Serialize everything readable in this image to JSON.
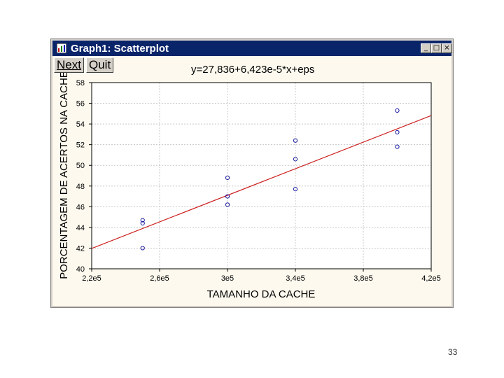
{
  "window": {
    "title": "Graph1: Scatterplot",
    "controls": {
      "minimize": "_",
      "maximize": "□",
      "close": "×"
    }
  },
  "toolbar": {
    "next_label": "Next",
    "quit_label": "Quit"
  },
  "colors": {
    "titlebar": "#0a246a",
    "plot_bg": "#fdf9ee",
    "points": "#1a1aa0",
    "fit_line": "#cc2020"
  },
  "chart_data": {
    "type": "scatter",
    "title": "y=27,836+6,423e-5*x+eps",
    "xlabel": "TAMANHO DA CACHE",
    "ylabel": "PORCENTAGEM DE ACERTOS NA CACHE",
    "xlim": [
      220000,
      420000
    ],
    "ylim": [
      40,
      58
    ],
    "x_ticks": [
      220000,
      260000,
      300000,
      340000,
      380000,
      420000
    ],
    "x_tick_labels": [
      "2,2e5",
      "2,6e5",
      "3e5",
      "3,4e5",
      "3,8e5",
      "4,2e5"
    ],
    "y_ticks": [
      40,
      42,
      44,
      46,
      48,
      50,
      52,
      54,
      56,
      58
    ],
    "y_tick_labels": [
      "40",
      "42",
      "44",
      "46",
      "48",
      "50",
      "52",
      "54",
      "56",
      "58"
    ],
    "grid": true,
    "points": [
      {
        "x": 250000,
        "y": 42.0
      },
      {
        "x": 250000,
        "y": 44.4
      },
      {
        "x": 250000,
        "y": 44.7
      },
      {
        "x": 300000,
        "y": 46.2
      },
      {
        "x": 300000,
        "y": 47.0
      },
      {
        "x": 300000,
        "y": 48.8
      },
      {
        "x": 340000,
        "y": 47.7
      },
      {
        "x": 340000,
        "y": 50.6
      },
      {
        "x": 340000,
        "y": 52.4
      },
      {
        "x": 400000,
        "y": 51.8
      },
      {
        "x": 400000,
        "y": 53.2
      },
      {
        "x": 400000,
        "y": 55.3
      }
    ],
    "fit_line": {
      "intercept": 27.836,
      "slope": 6.423e-05
    }
  },
  "slide": {
    "page_number": "33"
  }
}
